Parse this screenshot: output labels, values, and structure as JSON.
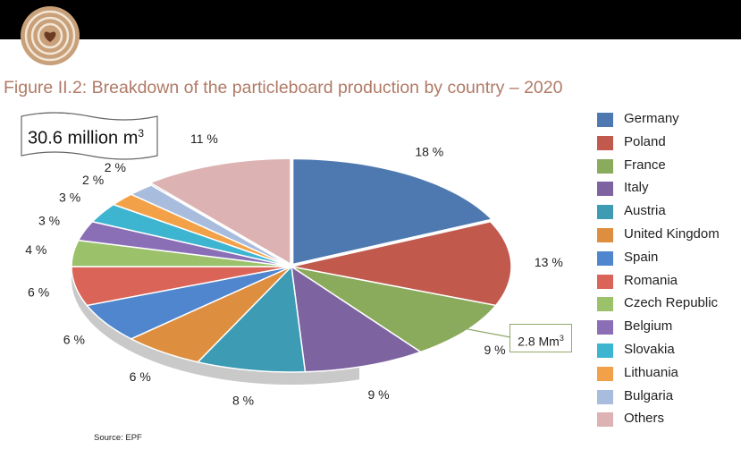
{
  "header": {
    "title": "Figure II.2: Breakdown of the particleboard production by country – 2020"
  },
  "total": {
    "value_text": "30.6 million m",
    "superscript": "3"
  },
  "callout": {
    "text": "2.8 Mm",
    "superscript": "3"
  },
  "source": "Source: EPF",
  "colors": {
    "title": "#b07a66",
    "topbar": "#000000",
    "logo": "#c8a07a"
  },
  "chart_data": {
    "type": "pie",
    "unit": "%",
    "start": "12 o'clock, clockwise",
    "categories": [
      "Germany",
      "Poland",
      "France",
      "Italy",
      "Austria",
      "United Kingdom",
      "Spain",
      "Romania",
      "Czech Republic",
      "Belgium",
      "Slovakia",
      "Lithuania",
      "Bulgaria",
      "Others"
    ],
    "values": [
      18,
      13,
      9,
      9,
      8,
      6,
      6,
      6,
      4,
      3,
      3,
      2,
      2,
      11
    ],
    "labels": [
      "18 %",
      "13 %",
      "9 %",
      "9 %",
      "8 %",
      "6 %",
      "6 %",
      "6 %",
      "4 %",
      "3 %",
      "3 %",
      "2 %",
      "2 %",
      "11 %"
    ],
    "colors": [
      "#4e79b0",
      "#c15a4d",
      "#8aaa5c",
      "#7d64a0",
      "#3d9bb4",
      "#de8e3f",
      "#4f86cd",
      "#db6458",
      "#9bc26b",
      "#8a6fb6",
      "#3db4d0",
      "#f3a148",
      "#a8bcdd",
      "#ddb2b2"
    ],
    "legend": "right"
  }
}
